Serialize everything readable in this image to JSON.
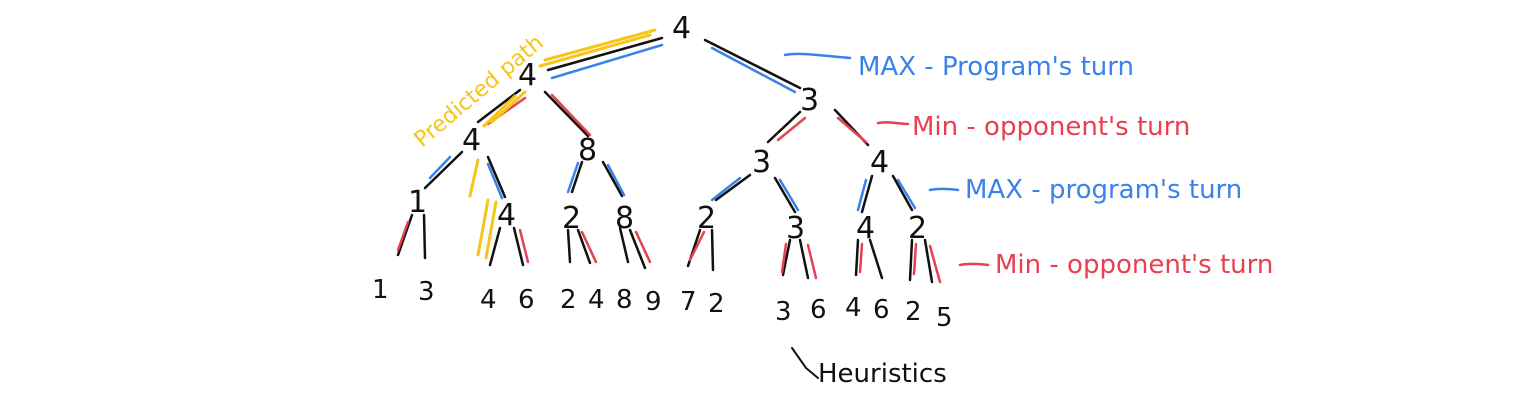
{
  "colors": {
    "ink": "#111111",
    "max": "#3b82e8",
    "min": "#e8404e",
    "path": "#f5c518"
  },
  "tree": {
    "root": "4",
    "level1": [
      "4",
      "3"
    ],
    "level2": [
      "4",
      "8",
      "3",
      "4"
    ],
    "level3": [
      "1",
      "4",
      "2",
      "8",
      "2",
      "3",
      "4",
      "2"
    ],
    "leaves": [
      "1",
      "3",
      "4",
      "6",
      "2",
      "4",
      "8",
      "9",
      "7",
      "2",
      "3",
      "6",
      "4",
      "6",
      "2",
      "5"
    ]
  },
  "legend": {
    "max_program": "MAX - Program's turn",
    "min_opponent": "Min - opponent's turn",
    "max_program_2": "MAX - program's turn",
    "min_opponent_2": "Min - opponent's turn"
  },
  "annotations": {
    "predicted_path": "Predicted path",
    "heuristics": "Heuristics"
  }
}
